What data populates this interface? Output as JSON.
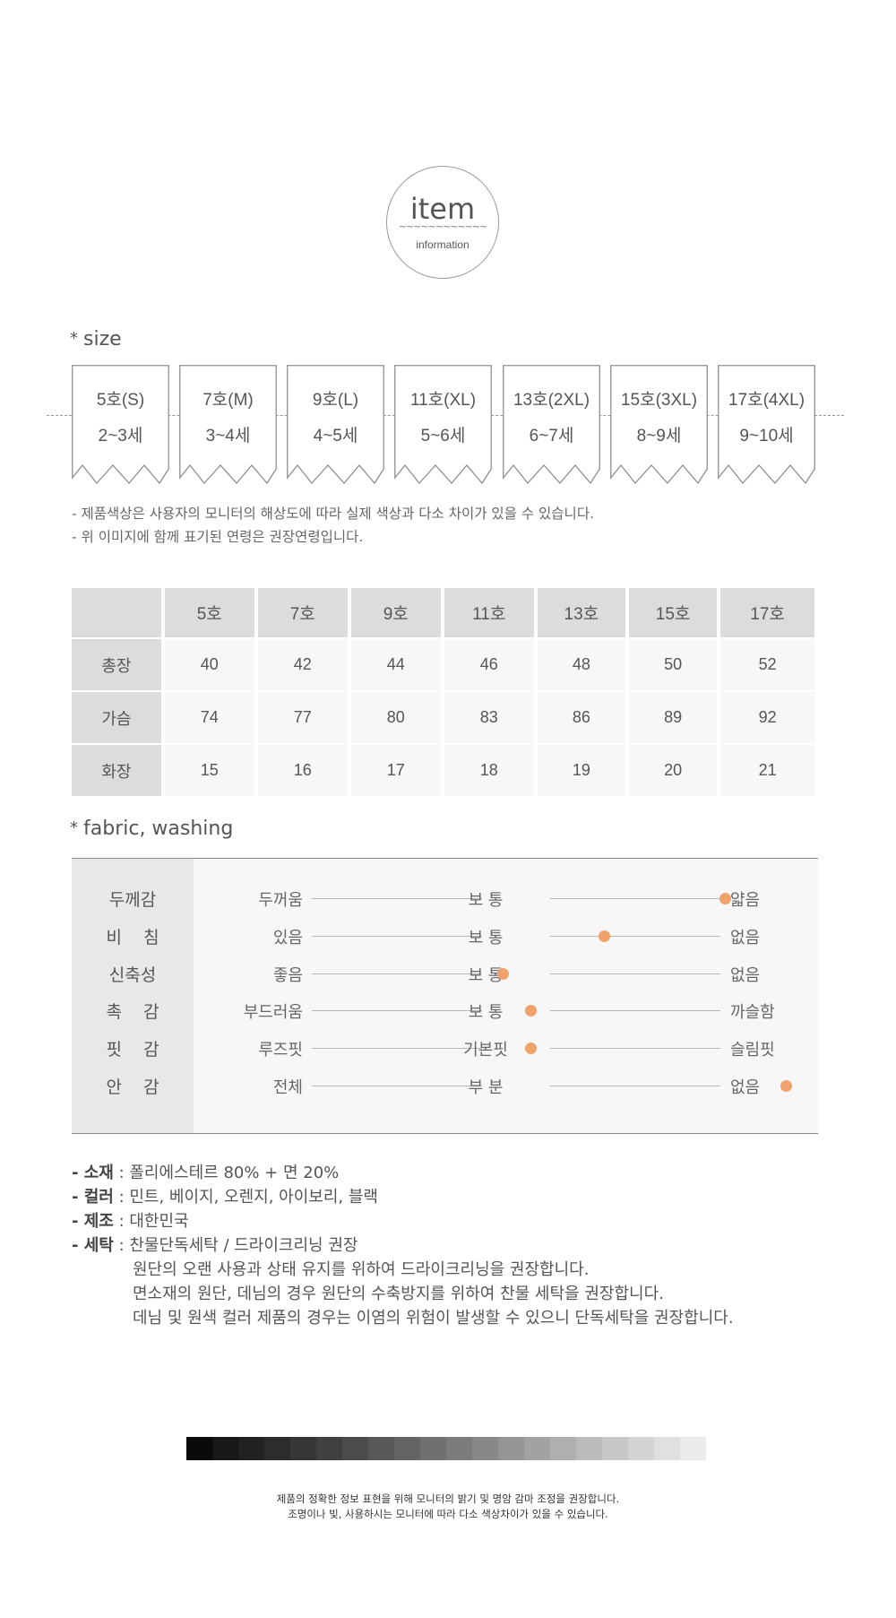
{
  "header": {
    "title": "item",
    "wave": "~~~~~~~~~~~~",
    "subtitle": "information"
  },
  "size_section": {
    "title": "size",
    "tags": [
      {
        "size": "5호(S)",
        "age": "2~3세"
      },
      {
        "size": "7호(M)",
        "age": "3~4세"
      },
      {
        "size": "9호(L)",
        "age": "4~5세"
      },
      {
        "size": "11호(XL)",
        "age": "5~6세"
      },
      {
        "size": "13호(2XL)",
        "age": "6~7세"
      },
      {
        "size": "15호(3XL)",
        "age": "8~9세"
      },
      {
        "size": "17호(4XL)",
        "age": "9~10세"
      }
    ],
    "notes": [
      "- 제품색상은 사용자의 모니터의 해상도에 따라 실제 색상과 다소 차이가 있을 수 있습니다.",
      "- 위 이미지에 함께 표기된 연령은 권장연령입니다."
    ]
  },
  "size_table": {
    "columns": [
      "5호",
      "7호",
      "9호",
      "11호",
      "13호",
      "15호",
      "17호"
    ],
    "rows": [
      {
        "label": "총장",
        "values": [
          "40",
          "42",
          "44",
          "46",
          "48",
          "50",
          "52"
        ]
      },
      {
        "label": "가슴",
        "values": [
          "74",
          "77",
          "80",
          "83",
          "86",
          "89",
          "92"
        ]
      },
      {
        "label": "화장",
        "values": [
          "15",
          "16",
          "17",
          "18",
          "19",
          "20",
          "21"
        ]
      }
    ]
  },
  "fabric_section": {
    "title": "fabric, washing",
    "accent_color": "#f0a26a",
    "rows": [
      {
        "label": "두께감",
        "left": "두꺼움",
        "mid": "보 통",
        "right": "얇음",
        "level": 0.85
      },
      {
        "label": "비    침",
        "left": "있음",
        "mid": "보 통",
        "right": "없음",
        "level": 0.55
      },
      {
        "label": "신축성",
        "left": "좋음",
        "mid": "보 통",
        "right": "없음",
        "level": 0.3
      },
      {
        "label": "촉    감",
        "left": "부드러움",
        "mid": "보 통",
        "right": "까슬함",
        "level": 0.37
      },
      {
        "label": "핏    감",
        "left": "루즈핏",
        "mid": "기본핏",
        "right": "슬림핏",
        "level": 0.37
      },
      {
        "label": "안    감",
        "left": "전체",
        "mid": "부 분",
        "right": "없음",
        "level": 1.0
      }
    ]
  },
  "specs": {
    "material_key": "- 소재",
    "material_val": " : 폴리에스테르 80% + 면 20%",
    "color_key": "- 컬러",
    "color_val": " : 민트, 베이지, 오렌지, 아이보리, 블랙",
    "made_key": "- 제조",
    "made_val": " : 대한민국",
    "wash_key": "- 세탁",
    "wash_val": " : 찬물단독세탁 / 드라이크리닝 권장",
    "wash_notes": [
      "원단의 오랜 사용과 상태 유지를 위하여 드라이크리닝을 권장합니다.",
      "면소재의 원단, 데님의 경우 원단의 수축방지를 위하여 찬물 세탁을 권장합니다.",
      "데님 및 원색 컬러 제품의 경우는 이염의 위험이 발생할 수 있으니 단독세탁을 권장합니다."
    ]
  },
  "grayscale": [
    "#0a0a0a",
    "#181818",
    "#222222",
    "#2c2c2c",
    "#363636",
    "#404040",
    "#4c4c4c",
    "#585858",
    "#646464",
    "#707070",
    "#7c7c7c",
    "#888888",
    "#959595",
    "#a2a2a2",
    "#afafaf",
    "#bcbcbc",
    "#c8c8c8",
    "#d4d4d4",
    "#e0e0e0",
    "#ebebeb"
  ],
  "footer": {
    "line1": "제품의 정확한 정보 표현을 위해 모니터의 밝기 및 명암 감마 조정을 권장합니다.",
    "line2": "조명이나 빛, 사용하시는 모니터에 따라 다소 색상차이가 있을 수 있습니다."
  }
}
